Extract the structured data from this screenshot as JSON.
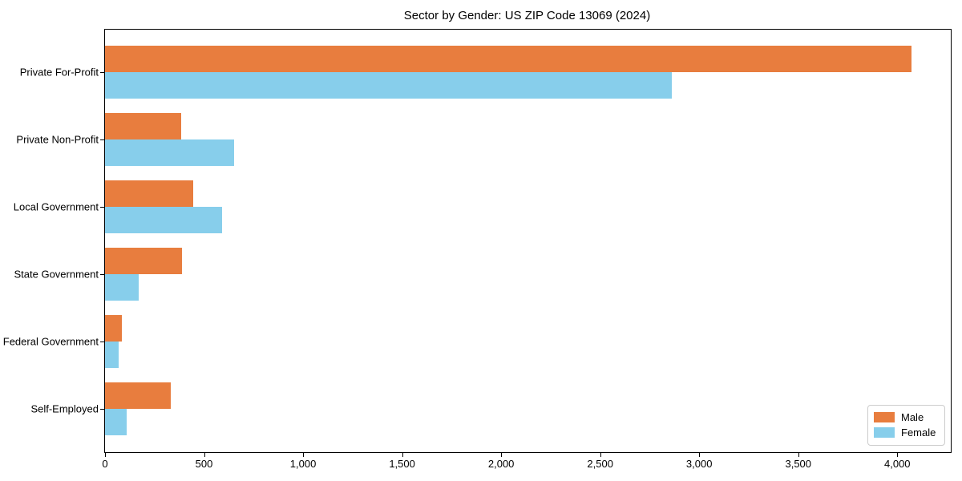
{
  "title": "Sector by Gender: US ZIP Code 13069 (2024)",
  "chart_data": {
    "type": "bar",
    "orientation": "horizontal",
    "title": "Sector by Gender: US ZIP Code 13069 (2024)",
    "categories": [
      "Private For-Profit",
      "Private Non-Profit",
      "Local Government",
      "State Government",
      "Federal Government",
      "Self-Employed"
    ],
    "series": [
      {
        "name": "Male",
        "color": "#e87d3e",
        "values": [
          4070,
          385,
          445,
          390,
          85,
          330
        ]
      },
      {
        "name": "Female",
        "color": "#87ceeb",
        "values": [
          2860,
          650,
          590,
          170,
          70,
          110
        ]
      }
    ],
    "xlim": [
      0,
      4270
    ],
    "xticks": [
      0,
      500,
      1000,
      1500,
      2000,
      2500,
      3000,
      3500,
      4000
    ],
    "xtick_labels": [
      "0",
      "500",
      "1,000",
      "1,500",
      "2,000",
      "2,500",
      "3,000",
      "3,500",
      "4,000"
    ],
    "xlabel": "",
    "ylabel": "",
    "grid": false,
    "legend": {
      "position": "lower right"
    },
    "background_color": "#ffffff",
    "axis_color": "#000000"
  }
}
